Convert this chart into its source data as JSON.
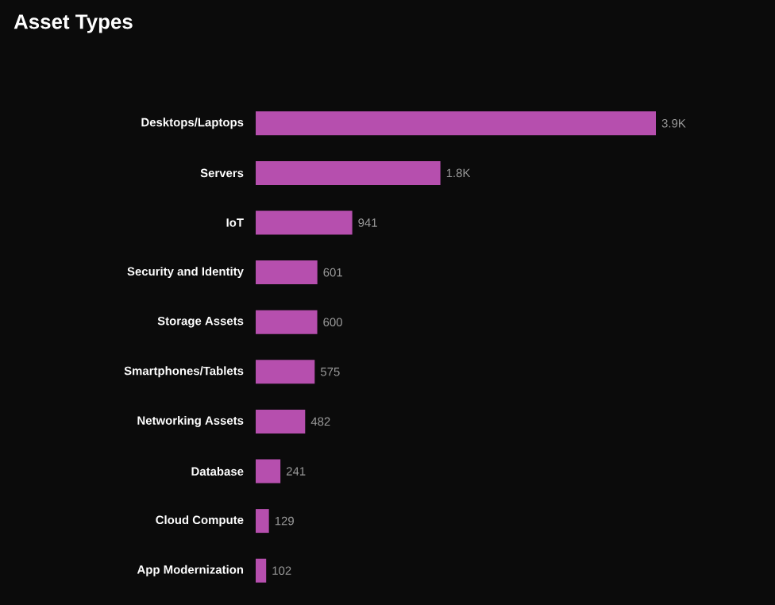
{
  "chart_data": {
    "type": "bar",
    "orientation": "horizontal",
    "title": "Asset Types",
    "categories": [
      "Desktops/Laptops",
      "Servers",
      "IoT",
      "Security and Identity",
      "Storage Assets",
      "Smartphones/Tablets",
      "Networking Assets",
      "Database",
      "Cloud Compute",
      "App Modernization"
    ],
    "values": [
      3900,
      1800,
      941,
      601,
      600,
      575,
      482,
      241,
      129,
      102
    ],
    "value_labels": [
      "3.9K",
      "1.8K",
      "941",
      "601",
      "600",
      "575",
      "482",
      "241",
      "129",
      "102"
    ],
    "color": "#b64fae",
    "tick_labels": "y"
  }
}
